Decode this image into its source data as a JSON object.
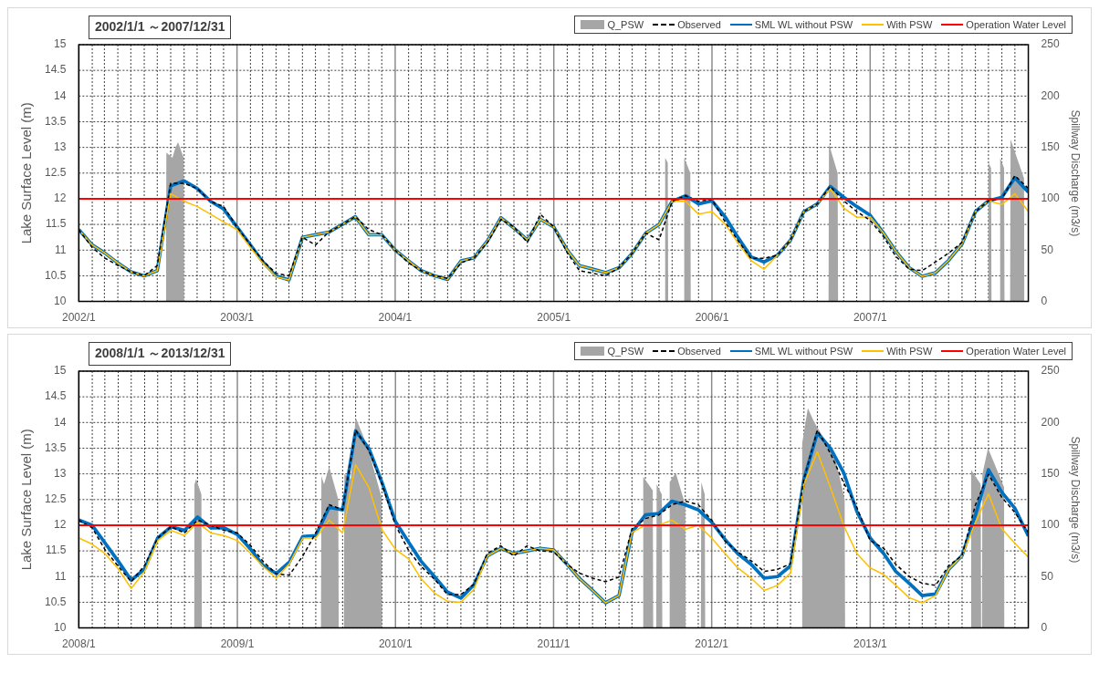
{
  "chart_data": [
    {
      "type": "line",
      "title": "2002/1/1 ～2007/12/31",
      "ylabel": "Lake Surface Level (m)",
      "y2label": "Spillway Discharge (m3/s)",
      "legend": "top right",
      "grid": true,
      "x": [
        "2002-01",
        "2002-02",
        "2002-03",
        "2002-04",
        "2002-05",
        "2002-06",
        "2002-07",
        "2002-08",
        "2002-09",
        "2002-10",
        "2002-11",
        "2002-12",
        "2003-01",
        "2003-02",
        "2003-03",
        "2003-04",
        "2003-05",
        "2003-06",
        "2003-07",
        "2003-08",
        "2003-09",
        "2003-10",
        "2003-11",
        "2003-12",
        "2004-01",
        "2004-02",
        "2004-03",
        "2004-04",
        "2004-05",
        "2004-06",
        "2004-07",
        "2004-08",
        "2004-09",
        "2004-10",
        "2004-11",
        "2004-12",
        "2005-01",
        "2005-02",
        "2005-03",
        "2005-04",
        "2005-05",
        "2005-06",
        "2005-07",
        "2005-08",
        "2005-09",
        "2005-10",
        "2005-11",
        "2005-12",
        "2006-01",
        "2006-02",
        "2006-03",
        "2006-04",
        "2006-05",
        "2006-06",
        "2006-07",
        "2006-08",
        "2006-09",
        "2006-10",
        "2006-11",
        "2006-12",
        "2007-01",
        "2007-02",
        "2007-03",
        "2007-04",
        "2007-05",
        "2007-06",
        "2007-07",
        "2007-08",
        "2007-09",
        "2007-10",
        "2007-11",
        "2007-12",
        "2008-01"
      ],
      "xlim": [
        "2002-01",
        "2008-01"
      ],
      "xticks": [
        {
          "value": "2002-01",
          "label": "2002/1"
        },
        {
          "value": "2002-02",
          "label": null
        },
        {
          "value": "2002-03",
          "label": null
        },
        {
          "value": "2002-04",
          "label": null
        },
        {
          "value": "2002-05",
          "label": null
        },
        {
          "value": "2002-06",
          "label": null
        },
        {
          "value": "2002-07",
          "label": null
        },
        {
          "value": "2002-08",
          "label": null
        },
        {
          "value": "2002-09",
          "label": null
        },
        {
          "value": "2002-10",
          "label": null
        },
        {
          "value": "2002-11",
          "label": null
        },
        {
          "value": "2002-12",
          "label": null
        },
        {
          "value": "2003-01",
          "label": "2003/1"
        },
        {
          "value": "2003-02",
          "label": null
        },
        {
          "value": "2003-03",
          "label": null
        },
        {
          "value": "2003-04",
          "label": null
        },
        {
          "value": "2003-05",
          "label": null
        },
        {
          "value": "2003-06",
          "label": null
        },
        {
          "value": "2003-07",
          "label": null
        },
        {
          "value": "2003-08",
          "label": null
        },
        {
          "value": "2003-09",
          "label": null
        },
        {
          "value": "2003-10",
          "label": null
        },
        {
          "value": "2003-11",
          "label": null
        },
        {
          "value": "2003-12",
          "label": null
        },
        {
          "value": "2004-01",
          "label": "2004/1"
        },
        {
          "value": "2004-02",
          "label": null
        },
        {
          "value": "2004-03",
          "label": null
        },
        {
          "value": "2004-04",
          "label": null
        },
        {
          "value": "2004-05",
          "label": null
        },
        {
          "value": "2004-06",
          "label": null
        },
        {
          "value": "2004-07",
          "label": null
        },
        {
          "value": "2004-08",
          "label": null
        },
        {
          "value": "2004-09",
          "label": null
        },
        {
          "value": "2004-10",
          "label": null
        },
        {
          "value": "2004-11",
          "label": null
        },
        {
          "value": "2004-12",
          "label": null
        },
        {
          "value": "2005-01",
          "label": "2005/1"
        },
        {
          "value": "2005-02",
          "label": null
        },
        {
          "value": "2005-03",
          "label": null
        },
        {
          "value": "2005-04",
          "label": null
        },
        {
          "value": "2005-05",
          "label": null
        },
        {
          "value": "2005-06",
          "label": null
        },
        {
          "value": "2005-07",
          "label": null
        },
        {
          "value": "2005-08",
          "label": null
        },
        {
          "value": "2005-09",
          "label": null
        },
        {
          "value": "2005-10",
          "label": null
        },
        {
          "value": "2005-11",
          "label": null
        },
        {
          "value": "2005-12",
          "label": null
        },
        {
          "value": "2006-01",
          "label": "2006/1"
        },
        {
          "value": "2006-02",
          "label": null
        },
        {
          "value": "2006-03",
          "label": null
        },
        {
          "value": "2006-04",
          "label": null
        },
        {
          "value": "2006-05",
          "label": null
        },
        {
          "value": "2006-06",
          "label": null
        },
        {
          "value": "2006-07",
          "label": null
        },
        {
          "value": "2006-08",
          "label": null
        },
        {
          "value": "2006-09",
          "label": null
        },
        {
          "value": "2006-10",
          "label": null
        },
        {
          "value": "2006-11",
          "label": null
        },
        {
          "value": "2006-12",
          "label": null
        },
        {
          "value": "2007-01",
          "label": "2007/1"
        },
        {
          "value": "2007-02",
          "label": null
        },
        {
          "value": "2007-03",
          "label": null
        },
        {
          "value": "2007-04",
          "label": null
        },
        {
          "value": "2007-05",
          "label": null
        },
        {
          "value": "2007-06",
          "label": null
        },
        {
          "value": "2007-07",
          "label": null
        },
        {
          "value": "2007-08",
          "label": null
        },
        {
          "value": "2007-09",
          "label": null
        },
        {
          "value": "2007-10",
          "label": null
        },
        {
          "value": "2007-11",
          "label": null
        },
        {
          "value": "2007-12",
          "label": null
        }
      ],
      "ylim": [
        10,
        15
      ],
      "yticks": [
        10,
        10.5,
        11,
        11.5,
        12,
        12.5,
        13,
        13.5,
        14,
        14.5,
        15
      ],
      "y2lim": [
        0,
        250
      ],
      "y2ticks": [
        0,
        50,
        100,
        150,
        200,
        250
      ],
      "ref_lines": [
        {
          "axis": "y",
          "value": 12,
          "label": "Operation Water Level",
          "color": "#ff0000"
        }
      ],
      "series": [
        {
          "name": "Q_PSW",
          "type": "area",
          "axis": "y2",
          "color": "#a6a6a6",
          "x": [
            "2002-07-21",
            "2002-07-22",
            "2002-08-05",
            "2002-08-12",
            "2002-08-18",
            "2002-08-31",
            "2002-09-01",
            "2005-09-14",
            "2005-09-15",
            "2005-09-21",
            "2005-09-22",
            "2005-10-28",
            "2005-10-29",
            "2005-11-12",
            "2005-11-13",
            "2006-09-27",
            "2006-09-28",
            "2006-10-18",
            "2006-10-19",
            "2007-09-30",
            "2007-10-01",
            "2007-10-07",
            "2007-10-08",
            "2007-10-27",
            "2007-10-28",
            "2007-11-06",
            "2007-11-07",
            "2007-11-20",
            "2007-11-21",
            "2007-12-22",
            "2007-12-23"
          ],
          "values": [
            0,
            145,
            140,
            150,
            155,
            140,
            0,
            0,
            140,
            135,
            0,
            0,
            140,
            125,
            0,
            0,
            153,
            125,
            0,
            0,
            135,
            130,
            0,
            0,
            140,
            130,
            0,
            0,
            158,
            120,
            0
          ]
        },
        {
          "name": "Observed",
          "color": "#000000",
          "line_style": "dashed",
          "values": [
            11.4,
            11.05,
            10.85,
            10.7,
            10.58,
            10.5,
            10.7,
            12.3,
            12.3,
            12.2,
            11.95,
            11.85,
            11.45,
            11.1,
            10.8,
            10.55,
            10.5,
            11.25,
            11.1,
            11.35,
            11.5,
            11.65,
            11.4,
            11.3,
            11.0,
            10.75,
            10.6,
            10.5,
            10.45,
            10.75,
            10.85,
            11.15,
            11.6,
            11.45,
            11.15,
            11.7,
            11.45,
            10.95,
            10.6,
            10.55,
            10.5,
            10.66,
            10.94,
            11.33,
            11.2,
            11.95,
            12.06,
            11.95,
            11.99,
            11.54,
            11.2,
            10.84,
            10.84,
            10.9,
            11.19,
            11.75,
            11.9,
            12.24,
            11.96,
            11.75,
            11.58,
            11.26,
            10.88,
            10.63,
            10.6,
            10.77,
            10.94,
            11.15,
            11.75,
            11.96,
            12.0,
            12.45,
            12.2
          ]
        },
        {
          "name": "SML WL without PSW",
          "color": "#0070c0",
          "values": [
            11.4,
            11.1,
            10.95,
            10.75,
            10.58,
            10.5,
            10.6,
            12.25,
            12.35,
            12.2,
            11.95,
            11.8,
            11.45,
            11.1,
            10.78,
            10.5,
            10.42,
            11.25,
            11.3,
            11.35,
            11.5,
            11.65,
            11.3,
            11.3,
            11.0,
            10.79,
            10.6,
            10.5,
            10.43,
            10.79,
            10.85,
            11.18,
            11.63,
            11.43,
            11.2,
            11.6,
            11.45,
            11.0,
            10.7,
            10.63,
            10.56,
            10.66,
            10.94,
            11.33,
            11.5,
            11.95,
            12.06,
            11.9,
            11.96,
            11.64,
            11.26,
            10.87,
            10.77,
            10.9,
            11.19,
            11.75,
            11.9,
            12.24,
            12.03,
            11.85,
            11.68,
            11.33,
            10.98,
            10.66,
            10.49,
            10.56,
            10.8,
            11.12,
            11.75,
            11.96,
            12.03,
            12.41,
            12.13
          ]
        },
        {
          "name": "With PSW",
          "color": "#ffc000",
          "values": [
            11.4,
            11.1,
            10.95,
            10.75,
            10.58,
            10.5,
            10.6,
            12.1,
            11.95,
            11.85,
            11.7,
            11.55,
            11.4,
            11.05,
            10.75,
            10.48,
            10.42,
            11.25,
            11.3,
            11.35,
            11.5,
            11.65,
            11.3,
            11.3,
            11.0,
            10.79,
            10.6,
            10.5,
            10.43,
            10.79,
            10.85,
            11.18,
            11.63,
            11.43,
            11.2,
            11.6,
            11.45,
            11.0,
            10.7,
            10.63,
            10.56,
            10.66,
            10.94,
            11.33,
            11.5,
            11.95,
            11.95,
            11.7,
            11.75,
            11.5,
            11.15,
            10.8,
            10.63,
            10.9,
            11.19,
            11.75,
            11.9,
            12.2,
            11.82,
            11.64,
            11.65,
            11.33,
            10.98,
            10.66,
            10.49,
            10.56,
            10.8,
            11.12,
            11.75,
            11.96,
            11.89,
            12.1,
            11.75
          ]
        }
      ]
    },
    {
      "type": "line",
      "title": "2008/1/1 ～2013/12/31",
      "ylabel": "Lake Surface Level (m)",
      "y2label": "Spillway Discharge (m3/s)",
      "legend": "top right",
      "grid": true,
      "x": [
        "2008-01",
        "2008-02",
        "2008-03",
        "2008-04",
        "2008-05",
        "2008-06",
        "2008-07",
        "2008-08",
        "2008-09",
        "2008-10",
        "2008-11",
        "2008-12",
        "2009-01",
        "2009-02",
        "2009-03",
        "2009-04",
        "2009-05",
        "2009-06",
        "2009-07",
        "2009-08",
        "2009-09",
        "2009-10",
        "2009-11",
        "2009-12",
        "2010-01",
        "2010-02",
        "2010-03",
        "2010-04",
        "2010-05",
        "2010-06",
        "2010-07",
        "2010-08",
        "2010-09",
        "2010-10",
        "2010-11",
        "2010-12",
        "2011-01",
        "2011-02",
        "2011-03",
        "2011-04",
        "2011-05",
        "2011-06",
        "2011-07",
        "2011-08",
        "2011-09",
        "2011-10",
        "2011-11",
        "2011-12",
        "2012-01",
        "2012-02",
        "2012-03",
        "2012-04",
        "2012-05",
        "2012-06",
        "2012-07",
        "2012-08",
        "2012-09",
        "2012-10",
        "2012-11",
        "2012-12",
        "2013-01",
        "2013-02",
        "2013-03",
        "2013-04",
        "2013-05",
        "2013-06",
        "2013-07",
        "2013-08",
        "2013-09",
        "2013-10",
        "2013-11",
        "2013-12",
        "2014-01"
      ],
      "xlim": [
        "2008-01",
        "2014-01"
      ],
      "xticks": [
        {
          "value": "2008-01",
          "label": "2008/1"
        },
        {
          "value": "2008-02",
          "label": null
        },
        {
          "value": "2008-03",
          "label": null
        },
        {
          "value": "2008-04",
          "label": null
        },
        {
          "value": "2008-05",
          "label": null
        },
        {
          "value": "2008-06",
          "label": null
        },
        {
          "value": "2008-07",
          "label": null
        },
        {
          "value": "2008-08",
          "label": null
        },
        {
          "value": "2008-09",
          "label": null
        },
        {
          "value": "2008-10",
          "label": null
        },
        {
          "value": "2008-11",
          "label": null
        },
        {
          "value": "2008-12",
          "label": null
        },
        {
          "value": "2009-01",
          "label": "2009/1"
        },
        {
          "value": "2009-02",
          "label": null
        },
        {
          "value": "2009-03",
          "label": null
        },
        {
          "value": "2009-04",
          "label": null
        },
        {
          "value": "2009-05",
          "label": null
        },
        {
          "value": "2009-06",
          "label": null
        },
        {
          "value": "2009-07",
          "label": null
        },
        {
          "value": "2009-08",
          "label": null
        },
        {
          "value": "2009-09",
          "label": null
        },
        {
          "value": "2009-10",
          "label": null
        },
        {
          "value": "2009-11",
          "label": null
        },
        {
          "value": "2009-12",
          "label": null
        },
        {
          "value": "2010-01",
          "label": "2010/1"
        },
        {
          "value": "2010-02",
          "label": null
        },
        {
          "value": "2010-03",
          "label": null
        },
        {
          "value": "2010-04",
          "label": null
        },
        {
          "value": "2010-05",
          "label": null
        },
        {
          "value": "2010-06",
          "label": null
        },
        {
          "value": "2010-07",
          "label": null
        },
        {
          "value": "2010-08",
          "label": null
        },
        {
          "value": "2010-09",
          "label": null
        },
        {
          "value": "2010-10",
          "label": null
        },
        {
          "value": "2010-11",
          "label": null
        },
        {
          "value": "2010-12",
          "label": null
        },
        {
          "value": "2011-01",
          "label": "2011/1"
        },
        {
          "value": "2011-02",
          "label": null
        },
        {
          "value": "2011-03",
          "label": null
        },
        {
          "value": "2011-04",
          "label": null
        },
        {
          "value": "2011-05",
          "label": null
        },
        {
          "value": "2011-06",
          "label": null
        },
        {
          "value": "2011-07",
          "label": null
        },
        {
          "value": "2011-08",
          "label": null
        },
        {
          "value": "2011-09",
          "label": null
        },
        {
          "value": "2011-10",
          "label": null
        },
        {
          "value": "2011-11",
          "label": null
        },
        {
          "value": "2011-12",
          "label": null
        },
        {
          "value": "2012-01",
          "label": "2012/1"
        },
        {
          "value": "2012-02",
          "label": null
        },
        {
          "value": "2012-03",
          "label": null
        },
        {
          "value": "2012-04",
          "label": null
        },
        {
          "value": "2012-05",
          "label": null
        },
        {
          "value": "2012-06",
          "label": null
        },
        {
          "value": "2012-07",
          "label": null
        },
        {
          "value": "2012-08",
          "label": null
        },
        {
          "value": "2012-09",
          "label": null
        },
        {
          "value": "2012-10",
          "label": null
        },
        {
          "value": "2012-11",
          "label": null
        },
        {
          "value": "2012-12",
          "label": null
        },
        {
          "value": "2013-01",
          "label": "2013/1"
        },
        {
          "value": "2013-02",
          "label": null
        },
        {
          "value": "2013-03",
          "label": null
        },
        {
          "value": "2013-04",
          "label": null
        },
        {
          "value": "2013-05",
          "label": null
        },
        {
          "value": "2013-06",
          "label": null
        },
        {
          "value": "2013-07",
          "label": null
        },
        {
          "value": "2013-08",
          "label": null
        },
        {
          "value": "2013-09",
          "label": null
        },
        {
          "value": "2013-10",
          "label": null
        },
        {
          "value": "2013-11",
          "label": null
        },
        {
          "value": "2013-12",
          "label": null
        }
      ],
      "ylim": [
        10,
        15
      ],
      "yticks": [
        10,
        10.5,
        11,
        11.5,
        12,
        12.5,
        13,
        13.5,
        14,
        14.5,
        15
      ],
      "y2lim": [
        0,
        250
      ],
      "y2ticks": [
        0,
        50,
        100,
        150,
        200,
        250
      ],
      "ref_lines": [
        {
          "axis": "y",
          "value": 12,
          "label": "Operation Water Level",
          "color": "#ff0000"
        }
      ],
      "series": [
        {
          "name": "Q_PSW",
          "type": "area",
          "axis": "y2",
          "color": "#a6a6a6",
          "x": [
            "2008-09-23",
            "2008-09-24",
            "2008-09-28",
            "2008-10-10",
            "2008-10-11",
            "2009-07-13",
            "2009-07-14",
            "2009-07-20",
            "2009-08-01",
            "2009-08-22",
            "2009-08-23",
            "2009-09-04",
            "2009-09-05",
            "2009-09-20",
            "2009-10-01",
            "2009-10-25",
            "2009-11-05",
            "2009-11-30",
            "2009-12-01",
            "2011-07-26",
            "2011-07-27",
            "2011-08-18",
            "2011-08-19",
            "2011-08-26",
            "2011-08-27",
            "2011-09-08",
            "2011-09-09",
            "2011-09-25",
            "2011-09-26",
            "2011-10-10",
            "2011-11-01",
            "2011-11-02",
            "2011-12-07",
            "2011-12-08",
            "2011-12-16",
            "2011-12-17",
            "2012-07-27",
            "2012-07-28",
            "2012-08-10",
            "2012-08-25",
            "2012-09-20",
            "2012-10-10",
            "2012-11-03",
            "2012-11-04",
            "2013-08-21",
            "2013-08-22",
            "2013-09-13",
            "2013-09-14",
            "2013-09-16",
            "2013-09-17",
            "2013-09-30",
            "2013-11-06",
            "2013-11-07"
          ],
          "values": [
            0,
            140,
            145,
            130,
            0,
            0,
            148,
            140,
            157,
            125,
            0,
            0,
            150,
            145,
            205,
            180,
            165,
            127,
            0,
            0,
            147,
            134,
            0,
            0,
            140,
            130,
            0,
            0,
            142,
            151,
            120,
            0,
            0,
            142,
            130,
            0,
            0,
            180,
            214,
            200,
            182,
            170,
            125,
            0,
            0,
            154,
            140,
            0,
            0,
            150,
            175,
            137,
            0
          ]
        },
        {
          "name": "Observed",
          "color": "#000000",
          "line_style": "dashed",
          "values": [
            12.1,
            11.95,
            11.53,
            11.2,
            10.9,
            11.22,
            11.75,
            11.97,
            11.85,
            12.1,
            12.0,
            11.9,
            11.85,
            11.6,
            11.3,
            11.05,
            11.03,
            11.4,
            11.85,
            12.4,
            12.3,
            13.85,
            13.45,
            12.8,
            12.0,
            11.5,
            11.2,
            10.95,
            10.65,
            10.65,
            10.85,
            11.45,
            11.6,
            11.4,
            11.6,
            11.5,
            11.48,
            11.24,
            11.07,
            10.97,
            10.9,
            10.99,
            11.93,
            12.13,
            12.2,
            12.4,
            12.47,
            12.4,
            12.1,
            11.69,
            11.48,
            11.31,
            11.1,
            11.14,
            11.25,
            12.9,
            13.85,
            13.4,
            12.82,
            12.35,
            11.7,
            11.55,
            11.24,
            11.0,
            10.87,
            10.83,
            11.21,
            11.41,
            12.4,
            12.99,
            12.54,
            12.25,
            11.86
          ]
        },
        {
          "name": "SML WL without PSW",
          "color": "#0070c0",
          "values": [
            12.1,
            12.0,
            11.66,
            11.3,
            10.93,
            11.15,
            11.75,
            11.97,
            11.9,
            12.16,
            11.95,
            11.95,
            11.82,
            11.53,
            11.22,
            11.06,
            11.28,
            11.78,
            11.8,
            12.35,
            12.3,
            13.84,
            13.49,
            12.83,
            12.07,
            11.66,
            11.3,
            11.0,
            10.7,
            10.58,
            10.84,
            11.4,
            11.55,
            11.45,
            11.5,
            11.55,
            11.52,
            11.24,
            10.97,
            10.73,
            10.49,
            10.63,
            11.86,
            12.2,
            12.23,
            12.47,
            12.4,
            12.3,
            12.06,
            11.72,
            11.45,
            11.24,
            10.97,
            11.0,
            11.21,
            12.9,
            13.8,
            13.5,
            13.02,
            12.27,
            11.75,
            11.45,
            11.1,
            10.87,
            10.63,
            10.66,
            11.14,
            11.41,
            12.2,
            13.08,
            12.64,
            12.33,
            11.79
          ]
        },
        {
          "name": "With PSW",
          "color": "#ffc000",
          "values": [
            11.75,
            11.63,
            11.45,
            11.15,
            10.77,
            11.1,
            11.7,
            11.9,
            11.8,
            12.05,
            11.85,
            11.8,
            11.7,
            11.45,
            11.2,
            10.97,
            11.25,
            11.75,
            11.75,
            12.1,
            11.85,
            13.18,
            12.73,
            11.91,
            11.53,
            11.34,
            10.96,
            10.68,
            10.52,
            10.5,
            10.75,
            11.4,
            11.55,
            11.45,
            11.5,
            11.55,
            11.52,
            11.24,
            10.97,
            10.73,
            10.49,
            10.63,
            11.86,
            12.0,
            12.0,
            12.1,
            11.92,
            12.0,
            11.75,
            11.45,
            11.17,
            10.97,
            10.73,
            10.83,
            11.07,
            12.8,
            13.43,
            12.74,
            11.99,
            11.45,
            11.17,
            11.04,
            10.83,
            10.59,
            10.49,
            10.63,
            11.14,
            11.4,
            12.06,
            12.61,
            11.93,
            11.65,
            11.38
          ]
        }
      ]
    }
  ]
}
